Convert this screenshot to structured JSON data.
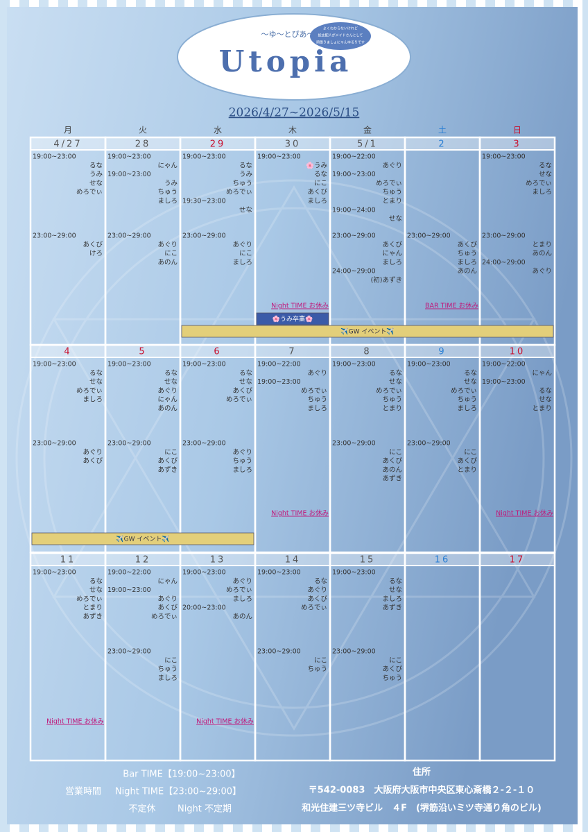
{
  "header": {
    "logo_sub": "〜ゆ〜とぴあ〜",
    "logo": "Utopia",
    "bubble": [
      "よくわからないけれど",
      "総支配人がメイドさんとして",
      "頑張りましょにゃんゆるりです"
    ],
    "date_range": "2026/4/27~2026/5/15"
  },
  "calendar": {
    "weekdays": [
      {
        "label": "月",
        "color": "#444"
      },
      {
        "label": "火",
        "color": "#444"
      },
      {
        "label": "水",
        "color": "#444"
      },
      {
        "label": "木",
        "color": "#444"
      },
      {
        "label": "金",
        "color": "#444"
      },
      {
        "label": "土",
        "color": "#2a7fd4"
      },
      {
        "label": "日",
        "color": "#c8102e"
      }
    ],
    "weeks": [
      {
        "days": [
          {
            "date": "4/27",
            "date_color": "#555",
            "bar": [
              {
                "time": "19:00~23:00",
                "names": [
                  "るな",
                  "うみ",
                  "せな",
                  "めろでぃ"
                ]
              }
            ],
            "night": [
              {
                "time": "23:00~29:00",
                "names": [
                  "あくび",
                  "けろ"
                ]
              }
            ]
          },
          {
            "date": "28",
            "date_color": "#555",
            "bar": [
              {
                "time": "19:00~23:00",
                "names": [
                  "にゃん"
                ]
              },
              {
                "time": "19:00~23:00",
                "names": [
                  "うみ",
                  "ちゅう",
                  "ましろ"
                ]
              }
            ],
            "night": [
              {
                "time": "23:00~29:00",
                "names": [
                  "あぐり",
                  "にこ",
                  "あのん"
                ]
              }
            ]
          },
          {
            "date": "29",
            "date_color": "#c8102e",
            "bar": [
              {
                "time": "19:00~23:00",
                "names": [
                  "るな",
                  "うみ",
                  "ちゅう",
                  "めろでぃ"
                ]
              },
              {
                "time": "19:30~23:00",
                "names": [
                  "せな"
                ]
              }
            ],
            "night": [
              {
                "time": "23:00~29:00",
                "names": [
                  "あぐり",
                  "にこ",
                  "ましろ"
                ]
              }
            ]
          },
          {
            "date": "30",
            "date_color": "#555",
            "bar": [
              {
                "time": "19:00~23:00",
                "names": [
                  "🌸うみ",
                  "るな",
                  "にこ",
                  "あくび",
                  "ましろ"
                ]
              }
            ],
            "night": [],
            "note": "Night TIME お休み"
          },
          {
            "date": "5/1",
            "date_color": "#555",
            "bar": [
              {
                "time": "19:00~22:00",
                "names": [
                  "あぐり"
                ]
              },
              {
                "time": "19:00~23:00",
                "names": [
                  "めろでぃ",
                  "ちゅう",
                  "とまり"
                ]
              },
              {
                "time": "19:00~24:00",
                "names": [
                  "せな"
                ]
              }
            ],
            "night": [
              {
                "time": "23:00~29:00",
                "names": [
                  "あくび",
                  "にゃん",
                  "ましろ"
                ]
              },
              {
                "time": "24:00~29:00",
                "names": [
                  "(初)あずき"
                ]
              }
            ]
          },
          {
            "date": "2",
            "date_color": "#2a7fd4",
            "bar": [],
            "night": [
              {
                "time": "23:00~29:00",
                "names": [
                  "あくび",
                  "ちゅう",
                  "ましろ",
                  "あのん"
                ]
              }
            ],
            "note": "BAR TIME お休み"
          },
          {
            "date": "3",
            "date_color": "#c8102e",
            "bar": [
              {
                "time": "19:00~23:00",
                "names": [
                  "るな",
                  "せな",
                  "めろでぃ",
                  "ましろ"
                ]
              }
            ],
            "night": [
              {
                "time": "23:00~29:00",
                "names": [
                  "とまり",
                  "あのん"
                ]
              },
              {
                "time": "24:00~29:00",
                "names": [
                  "あぐり"
                ]
              }
            ]
          }
        ],
        "events": [
          {
            "label": "🌸うみ卒業🌸",
            "start_col": 3,
            "span": 1,
            "color": "#3b5ba8",
            "text_color": "#ffffff"
          },
          {
            "label": "✈️GW イベント✈️",
            "start_col": 2,
            "span": 5,
            "color": "#e3cf7a",
            "text_color": "#334"
          }
        ]
      },
      {
        "days": [
          {
            "date": "4",
            "date_color": "#c8102e",
            "bar": [
              {
                "time": "19:00~23:00",
                "names": [
                  "るな",
                  "せな",
                  "めろでぃ",
                  "ましろ"
                ]
              }
            ],
            "night": [
              {
                "time": "23:00~29:00",
                "names": [
                  "あぐり",
                  "あくび"
                ]
              }
            ]
          },
          {
            "date": "5",
            "date_color": "#c8102e",
            "bar": [
              {
                "time": "19:00~23:00",
                "names": [
                  "るな",
                  "せな",
                  "あぐり",
                  "にゃん",
                  "あのん"
                ]
              }
            ],
            "night": [
              {
                "time": "23:00~29:00",
                "names": [
                  "にこ",
                  "あくび",
                  "あずき"
                ]
              }
            ]
          },
          {
            "date": "6",
            "date_color": "#c8102e",
            "bar": [
              {
                "time": "19:00~23:00",
                "names": [
                  "るな",
                  "せな",
                  "あくび",
                  "めろでぃ"
                ]
              }
            ],
            "night": [
              {
                "time": "23:00~29:00",
                "names": [
                  "あぐり",
                  "ちゅう",
                  "ましろ"
                ]
              }
            ]
          },
          {
            "date": "7",
            "date_color": "#555",
            "bar": [
              {
                "time": "19:00~22:00",
                "names": [
                  "あぐり"
                ]
              },
              {
                "time": "19:00~23:00",
                "names": [
                  "めろでぃ",
                  "ちゅう",
                  "ましろ"
                ]
              }
            ],
            "night": [],
            "note": "Night TIME お休み"
          },
          {
            "date": "8",
            "date_color": "#555",
            "bar": [
              {
                "time": "19:00~23:00",
                "names": [
                  "るな",
                  "せな",
                  "めろでぃ",
                  "ちゅう",
                  "とまり"
                ]
              }
            ],
            "night": [
              {
                "time": "23:00~29:00",
                "names": [
                  "にこ",
                  "あくび",
                  "あのん",
                  "あずき"
                ]
              }
            ]
          },
          {
            "date": "9",
            "date_color": "#2a7fd4",
            "bar": [
              {
                "time": "19:00~23:00",
                "names": [
                  "るな",
                  "せな",
                  "めろでぃ",
                  "ちゅう",
                  "ましろ"
                ]
              }
            ],
            "night": [
              {
                "time": "23:00~29:00",
                "names": [
                  "にこ",
                  "あくび",
                  "とまり"
                ]
              }
            ]
          },
          {
            "date": "10",
            "date_color": "#c8102e",
            "bar": [
              {
                "time": "19:00~22:00",
                "names": [
                  "にゃん"
                ]
              },
              {
                "time": "19:00~23:00",
                "names": [
                  "るな",
                  "せな",
                  "とまり"
                ]
              }
            ],
            "night": [],
            "note": "Night TIME お休み"
          }
        ],
        "events": [
          {
            "label": "✈️GW イベント✈️",
            "start_col": 0,
            "span": 3,
            "color": "#e3cf7a",
            "text_color": "#334"
          }
        ]
      },
      {
        "days": [
          {
            "date": "11",
            "date_color": "#555",
            "bar": [
              {
                "time": "19:00~23:00",
                "names": [
                  "るな",
                  "せな",
                  "めろでぃ",
                  "とまり",
                  "あずき"
                ]
              }
            ],
            "night": [],
            "note": "Night TIME お休み"
          },
          {
            "date": "12",
            "date_color": "#555",
            "bar": [
              {
                "time": "19:00~22:00",
                "names": [
                  "にゃん"
                ]
              },
              {
                "time": "19:00~23:00",
                "names": [
                  "あぐり",
                  "あくび",
                  "めろでぃ"
                ]
              }
            ],
            "night": [
              {
                "time": "23:00~29:00",
                "names": [
                  "にこ",
                  "ちゅう",
                  "ましろ"
                ]
              }
            ]
          },
          {
            "date": "13",
            "date_color": "#555",
            "bar": [
              {
                "time": "19:00~23:00",
                "names": [
                  "あぐり",
                  "めろでぃ",
                  "ましろ"
                ]
              },
              {
                "time": "20:00~23:00",
                "names": [
                  "あのん"
                ]
              }
            ],
            "night": [],
            "note": "Night TIME お休み"
          },
          {
            "date": "14",
            "date_color": "#555",
            "bar": [
              {
                "time": "19:00~23:00",
                "names": [
                  "るな",
                  "あぐり",
                  "あくび",
                  "めろでぃ"
                ]
              }
            ],
            "night": [
              {
                "time": "23:00~29:00",
                "names": [
                  "にこ",
                  "ちゅう"
                ]
              }
            ]
          },
          {
            "date": "15",
            "date_color": "#555",
            "bar": [
              {
                "time": "19:00~23:00",
                "names": [
                  "るな",
                  "せな",
                  "ましろ",
                  "あずき"
                ]
              }
            ],
            "night": [
              {
                "time": "23:00~29:00",
                "names": [
                  "にこ",
                  "あくび",
                  "ちゅう"
                ]
              }
            ]
          },
          {
            "date": "16",
            "date_color": "#2a7fd4",
            "bar": [],
            "night": []
          },
          {
            "date": "17",
            "date_color": "#c8102e",
            "bar": [],
            "night": []
          }
        ],
        "events": []
      }
    ]
  },
  "footer": {
    "hours": {
      "bar": "Bar TIME【19:00~23:00】",
      "label": "営業時間",
      "night": "Night TIME【23:00~29:00】",
      "closed": "不定休",
      "night_closed": "Night 不定期"
    },
    "address": {
      "label": "住所",
      "line1": "〒542-0083　大阪府大阪市中央区東心斎橋２-２-１０",
      "line2": "和光住建三ツ寺ビル　４F　(堺筋沿いミツ寺通り角のビル)"
    }
  }
}
